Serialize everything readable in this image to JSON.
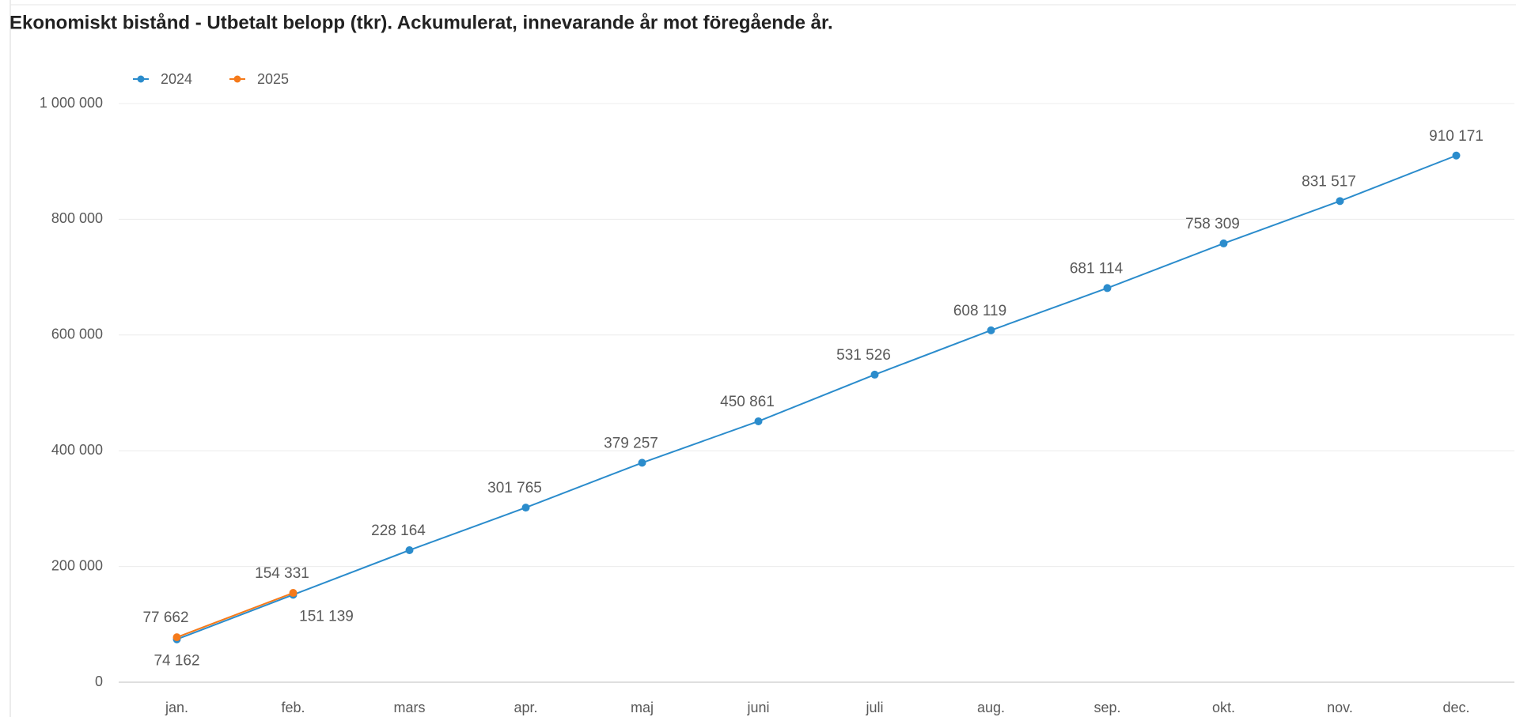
{
  "chart_data": {
    "type": "line",
    "title": "Ekonomiskt bistånd - Utbetalt belopp (tkr). Ackumulerat, innevarande år mot föregående år.",
    "categories": [
      "jan.",
      "feb.",
      "mars",
      "apr.",
      "maj",
      "juni",
      "juli",
      "aug.",
      "sep.",
      "okt.",
      "nov.",
      "dec."
    ],
    "series": [
      {
        "name": "2024",
        "color": "#2b8ccc",
        "values": [
          74162,
          151139,
          228164,
          301765,
          379257,
          450861,
          531526,
          608119,
          681114,
          758309,
          831517,
          910171
        ],
        "value_labels": [
          "74 162",
          "151 139",
          "228 164",
          "301 765",
          "379 257",
          "450 861",
          "531 526",
          "608 119",
          "681 114",
          "758 309",
          "831 517",
          "910 171"
        ]
      },
      {
        "name": "2025",
        "color": "#f57a1a",
        "values": [
          77662,
          154331,
          null,
          null,
          null,
          null,
          null,
          null,
          null,
          null,
          null,
          null
        ],
        "value_labels": [
          "77 662",
          "154 331",
          null,
          null,
          null,
          null,
          null,
          null,
          null,
          null,
          null,
          null
        ]
      }
    ],
    "ylim": [
      0,
      1000000
    ],
    "yticks": [
      0,
      {
        "value": 200000,
        "label": "200 000"
      },
      {
        "value": 400000,
        "label": "400 000"
      },
      {
        "value": 600000,
        "label": "600 000"
      },
      {
        "value": 800000,
        "label": "800 000"
      },
      {
        "value": 1000000,
        "label": "1 000 000"
      }
    ],
    "grid": true,
    "legend": "top-left"
  }
}
